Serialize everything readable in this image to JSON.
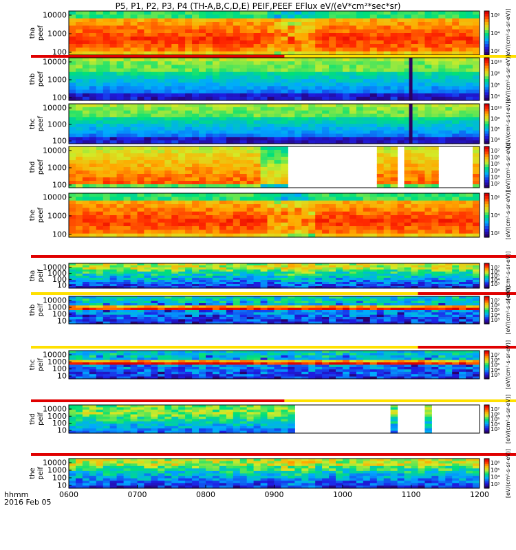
{
  "title": "P5, P1, P2, P3, P4 (TH-A,B,C,D,E) PEIF,PEEF EFlux eV/(eV*cm²*sec*sr)",
  "footer": {
    "time_label": "hhmm",
    "date_label": "2016 Feb 05"
  },
  "chart_data": {
    "type": "heatmap",
    "x": {
      "label": "hhmm",
      "range": [
        "0600",
        "1200"
      ],
      "ticks": [
        "0600",
        "0700",
        "0800",
        "0900",
        "1000",
        "1100",
        "1200"
      ]
    },
    "panels": [
      {
        "id": "tha_peef",
        "ylabel": [
          "tha",
          "peef"
        ],
        "yticks": [
          "10000",
          "1000",
          "100"
        ],
        "color_ticks": [
          "10⁶",
          "10⁴",
          "10²"
        ],
        "unit_label": "[eV/(cm²-s-sr-eV)]",
        "pattern": "hot_dense",
        "flag": "red_yellow"
      },
      {
        "id": "thb_peef",
        "ylabel": [
          "thb",
          "peef"
        ],
        "yticks": [
          "10000",
          "1000",
          "100"
        ],
        "color_ticks": [
          "10¹⁰",
          "10⁸",
          "10⁶",
          "10⁴"
        ],
        "unit_label": "[eV/(cm²-s-sr-eV)]",
        "pattern": "sparse_spike",
        "flag": "none"
      },
      {
        "id": "thc_peef",
        "ylabel": [
          "thc",
          "peef"
        ],
        "yticks": [
          "10000",
          "1000",
          "100"
        ],
        "color_ticks": [
          "10¹⁰",
          "10⁸",
          "10⁶",
          "10⁴"
        ],
        "unit_label": "[eV/(cm²-s-sr-eV)]",
        "pattern": "sparse_spike",
        "flag": "none"
      },
      {
        "id": "thd_peef",
        "ylabel": [
          "thd",
          "peef"
        ],
        "yticks": [
          "10000",
          "1000",
          "100"
        ],
        "color_ticks": [
          "10⁷",
          "10⁶",
          "10⁵",
          "10⁴",
          "10³",
          "10²"
        ],
        "unit_label": "[eV/(cm²-s-sr-eV)]",
        "pattern": "hot_gaps",
        "flag": "none"
      },
      {
        "id": "the_peef",
        "ylabel": [
          "the",
          "peef"
        ],
        "yticks": [
          "10000",
          "1000",
          "100"
        ],
        "color_ticks": [
          "10⁶",
          "10⁴",
          "10²"
        ],
        "unit_label": "[eV/(cm²-s-sr-eV)]",
        "pattern": "hot_dense",
        "flag": "red"
      },
      {
        "id": "tha_peif",
        "ylabel": [
          "tha",
          "peif"
        ],
        "yticks": [
          "10000",
          "1000",
          "100",
          "10"
        ],
        "color_ticks": [
          "10⁷",
          "10⁶",
          "10⁵",
          "10⁴",
          "10³"
        ],
        "unit_label": "[eV/(cm²-s-sr-eV)]",
        "pattern": "ion_band",
        "flag": "yellow_red_end"
      },
      {
        "id": "thb_peif",
        "ylabel": [
          "thb",
          "peif"
        ],
        "yticks": [
          "10000",
          "1000",
          "100",
          "10"
        ],
        "color_ticks": [
          "10⁷",
          "10⁶",
          "10⁵",
          "10⁴",
          "10³"
        ],
        "unit_label": "[eV/(cm²-s-sr-eV)]",
        "pattern": "ion_stripes",
        "flag": "yellow_red_end"
      },
      {
        "id": "thc_peif",
        "ylabel": [
          "thc",
          "peif"
        ],
        "yticks": [
          "10000",
          "1000",
          "100",
          "10"
        ],
        "color_ticks": [
          "10⁷",
          "10⁶",
          "10⁵",
          "10⁴",
          "10³"
        ],
        "unit_label": "[eV/(cm²-s-sr-eV)]",
        "pattern": "ion_stripes",
        "flag": "red_yellow"
      },
      {
        "id": "thd_peif",
        "ylabel": [
          "thd",
          "peif"
        ],
        "yticks": [
          "10000",
          "1000",
          "100",
          "10"
        ],
        "color_ticks": [
          "10⁷",
          "10⁶",
          "10⁵",
          "10⁴",
          "10³"
        ],
        "unit_label": "[eV/(cm²-s-sr-eV)]",
        "pattern": "ion_gaps",
        "flag": "red"
      },
      {
        "id": "the_peif",
        "ylabel": [
          "the",
          "peif"
        ],
        "yticks": [
          "10000",
          "1000",
          "100",
          "10"
        ],
        "color_ticks": [
          "10⁶",
          "10⁵",
          "10⁴",
          "10³"
        ],
        "unit_label": "[eV/(cm²-s-sr-eV)]",
        "pattern": "ion_band",
        "flag": "none"
      }
    ]
  }
}
